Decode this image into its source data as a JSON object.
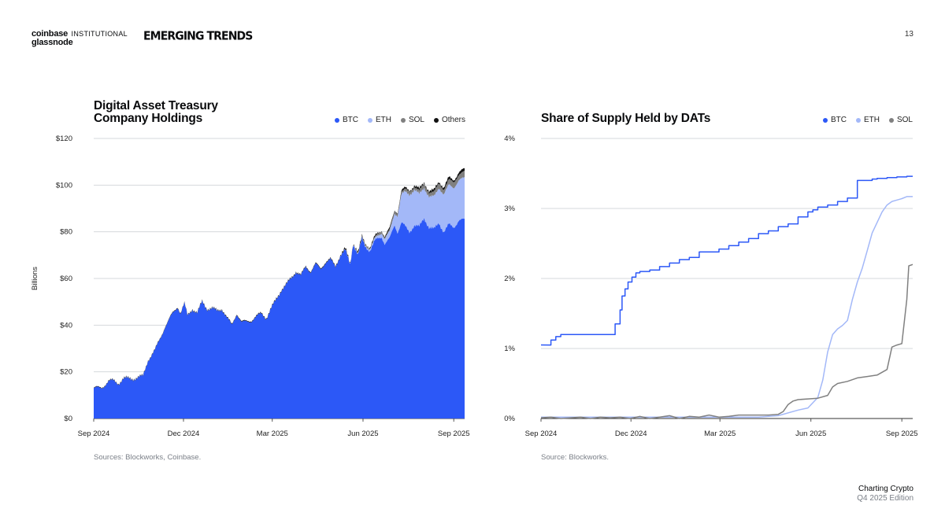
{
  "header": {
    "brand_coinbase": "coinbase",
    "brand_institutional": "INSTITUTIONAL",
    "brand_glassnode": "glassnode",
    "series_title": "EMERGING TRENDS",
    "page_number": "13"
  },
  "footer": {
    "line1": "Charting Crypto",
    "line2": "Q4 2025 Edition"
  },
  "colors": {
    "btc": "#2c58f7",
    "eth": "#a3b8f8",
    "sol": "#808080",
    "others": "#111111",
    "grid": "#d5d8dc"
  },
  "chart_data": [
    {
      "type": "area",
      "stacked": true,
      "title_line1": "Digital Asset Treasury",
      "title_line2": "Company Holdings",
      "ylabel": "Billions",
      "ylim": [
        0,
        120
      ],
      "y_ticks": [
        "$0",
        "$20",
        "$40",
        "$60",
        "$80",
        "$100",
        "$120"
      ],
      "y_tick_values": [
        0,
        20,
        40,
        60,
        80,
        100,
        120
      ],
      "x_ticks": [
        "Sep 2024",
        "Dec 2024",
        "Mar 2025",
        "Jun 2025",
        "Sep 2025"
      ],
      "x_tick_days": [
        0,
        91,
        181,
        273,
        365
      ],
      "x_range_days": [
        0,
        376
      ],
      "legend": [
        "BTC",
        "ETH",
        "SOL",
        "Others"
      ],
      "source": "Sources: Blockworks, Coinbase.",
      "series": [
        {
          "name": "BTC",
          "x": [
            0,
            8,
            15,
            20,
            25,
            30,
            40,
            50,
            55,
            62,
            68,
            72,
            75,
            80,
            85,
            88,
            92,
            95,
            100,
            105,
            110,
            115,
            120,
            125,
            130,
            135,
            140,
            145,
            150,
            160,
            170,
            175,
            180,
            185,
            190,
            195,
            200,
            205,
            210,
            215,
            220,
            225,
            230,
            235,
            240,
            245,
            250,
            255,
            260,
            263,
            268,
            272,
            275,
            280,
            285,
            288,
            292,
            295,
            300,
            305,
            308,
            312,
            316,
            320,
            325,
            330,
            335,
            340,
            345,
            350,
            355,
            360,
            365,
            370,
            376
          ],
          "values": [
            13,
            13,
            16,
            16,
            15,
            17,
            17,
            18,
            25,
            29,
            35,
            39,
            41,
            45,
            48,
            45,
            49,
            44,
            47,
            45,
            50,
            47,
            47,
            46,
            47,
            43,
            40,
            45,
            41,
            42,
            45,
            43,
            47,
            51,
            55,
            57,
            60,
            63,
            61,
            65,
            63,
            66,
            64,
            67,
            68,
            65,
            70,
            72,
            66,
            75,
            70,
            77,
            74,
            72,
            76,
            77,
            78,
            75,
            77,
            83,
            80,
            84,
            82,
            80,
            83,
            82,
            86,
            82,
            81,
            84,
            80,
            83,
            82,
            85,
            85
          ]
        },
        {
          "name": "ETH",
          "x": [
            0,
            200,
            250,
            280,
            285,
            290,
            295,
            300,
            305,
            308,
            312,
            316,
            320,
            325,
            330,
            335,
            340,
            345,
            350,
            355,
            360,
            365,
            370,
            376
          ],
          "values": [
            0,
            0,
            0,
            0.5,
            1,
            1.5,
            2,
            3,
            5,
            7,
            12,
            15,
            16,
            15,
            14,
            13,
            13,
            14,
            15,
            16,
            17,
            17,
            17,
            18
          ]
        },
        {
          "name": "SOL",
          "x": [
            0,
            250,
            280,
            300,
            310,
            320,
            330,
            340,
            350,
            360,
            370,
            376
          ],
          "values": [
            0,
            0,
            0.5,
            0.8,
            1.0,
            1.2,
            1.5,
            1.8,
            2.0,
            2.2,
            2.5,
            2.7
          ]
        },
        {
          "name": "Others",
          "x": [
            0,
            250,
            290,
            300,
            320,
            340,
            350,
            360,
            370,
            376
          ],
          "values": [
            0.2,
            0.3,
            0.4,
            0.5,
            0.6,
            0.7,
            0.8,
            0.9,
            1.0,
            1.0
          ]
        }
      ]
    },
    {
      "type": "line",
      "title": "Share of Supply Held by DATs",
      "ylim": [
        0,
        4
      ],
      "y_ticks": [
        "0%",
        "1%",
        "2%",
        "3%",
        "4%"
      ],
      "y_tick_values": [
        0,
        1,
        2,
        3,
        4
      ],
      "x_ticks": [
        "Sep 2024",
        "Dec 2024",
        "Mar 2025",
        "Jun 2025",
        "Sep 2025"
      ],
      "x_tick_days": [
        0,
        91,
        181,
        273,
        365
      ],
      "x_range_days": [
        0,
        376
      ],
      "legend": [
        "BTC",
        "ETH",
        "SOL"
      ],
      "source": "Source: Blockworks.",
      "series": [
        {
          "name": "BTC",
          "step": true,
          "x": [
            0,
            10,
            15,
            20,
            40,
            60,
            70,
            75,
            80,
            82,
            85,
            88,
            92,
            96,
            100,
            110,
            120,
            130,
            140,
            150,
            160,
            170,
            180,
            190,
            200,
            210,
            220,
            230,
            240,
            250,
            260,
            270,
            275,
            280,
            290,
            300,
            310,
            320,
            330,
            335,
            340,
            350,
            360,
            370,
            376
          ],
          "values": [
            1.05,
            1.12,
            1.17,
            1.2,
            1.2,
            1.2,
            1.2,
            1.35,
            1.55,
            1.75,
            1.85,
            1.95,
            2.02,
            2.08,
            2.1,
            2.12,
            2.17,
            2.22,
            2.27,
            2.3,
            2.38,
            2.38,
            2.42,
            2.47,
            2.52,
            2.57,
            2.64,
            2.68,
            2.74,
            2.78,
            2.88,
            2.95,
            2.98,
            3.02,
            3.05,
            3.1,
            3.15,
            3.4,
            3.4,
            3.42,
            3.43,
            3.44,
            3.45,
            3.46,
            3.46
          ]
        },
        {
          "name": "ETH",
          "x": [
            0,
            180,
            200,
            220,
            240,
            260,
            270,
            280,
            285,
            290,
            295,
            300,
            305,
            310,
            315,
            320,
            325,
            330,
            335,
            340,
            345,
            350,
            355,
            360,
            365,
            370,
            376
          ],
          "values": [
            0.02,
            0.02,
            0.02,
            0.02,
            0.04,
            0.12,
            0.15,
            0.3,
            0.55,
            0.95,
            1.2,
            1.28,
            1.33,
            1.4,
            1.7,
            1.95,
            2.15,
            2.4,
            2.65,
            2.8,
            2.95,
            3.05,
            3.1,
            3.12,
            3.14,
            3.17,
            3.17
          ]
        },
        {
          "name": "SOL",
          "x": [
            0,
            10,
            20,
            30,
            40,
            50,
            60,
            70,
            80,
            90,
            100,
            110,
            120,
            130,
            140,
            150,
            160,
            170,
            180,
            190,
            200,
            210,
            220,
            230,
            240,
            245,
            250,
            255,
            260,
            270,
            280,
            290,
            295,
            300,
            310,
            320,
            330,
            340,
            350,
            355,
            360,
            365,
            370,
            372,
            376
          ],
          "values": [
            0.01,
            0.02,
            0.0,
            0.01,
            0.02,
            0.0,
            0.02,
            0.01,
            0.02,
            0.0,
            0.03,
            0.0,
            0.02,
            0.04,
            0.0,
            0.03,
            0.02,
            0.05,
            0.02,
            0.03,
            0.05,
            0.05,
            0.05,
            0.05,
            0.06,
            0.1,
            0.2,
            0.25,
            0.27,
            0.28,
            0.29,
            0.33,
            0.45,
            0.5,
            0.53,
            0.58,
            0.6,
            0.62,
            0.7,
            1.02,
            1.05,
            1.07,
            1.7,
            2.18,
            2.2
          ]
        }
      ]
    }
  ]
}
